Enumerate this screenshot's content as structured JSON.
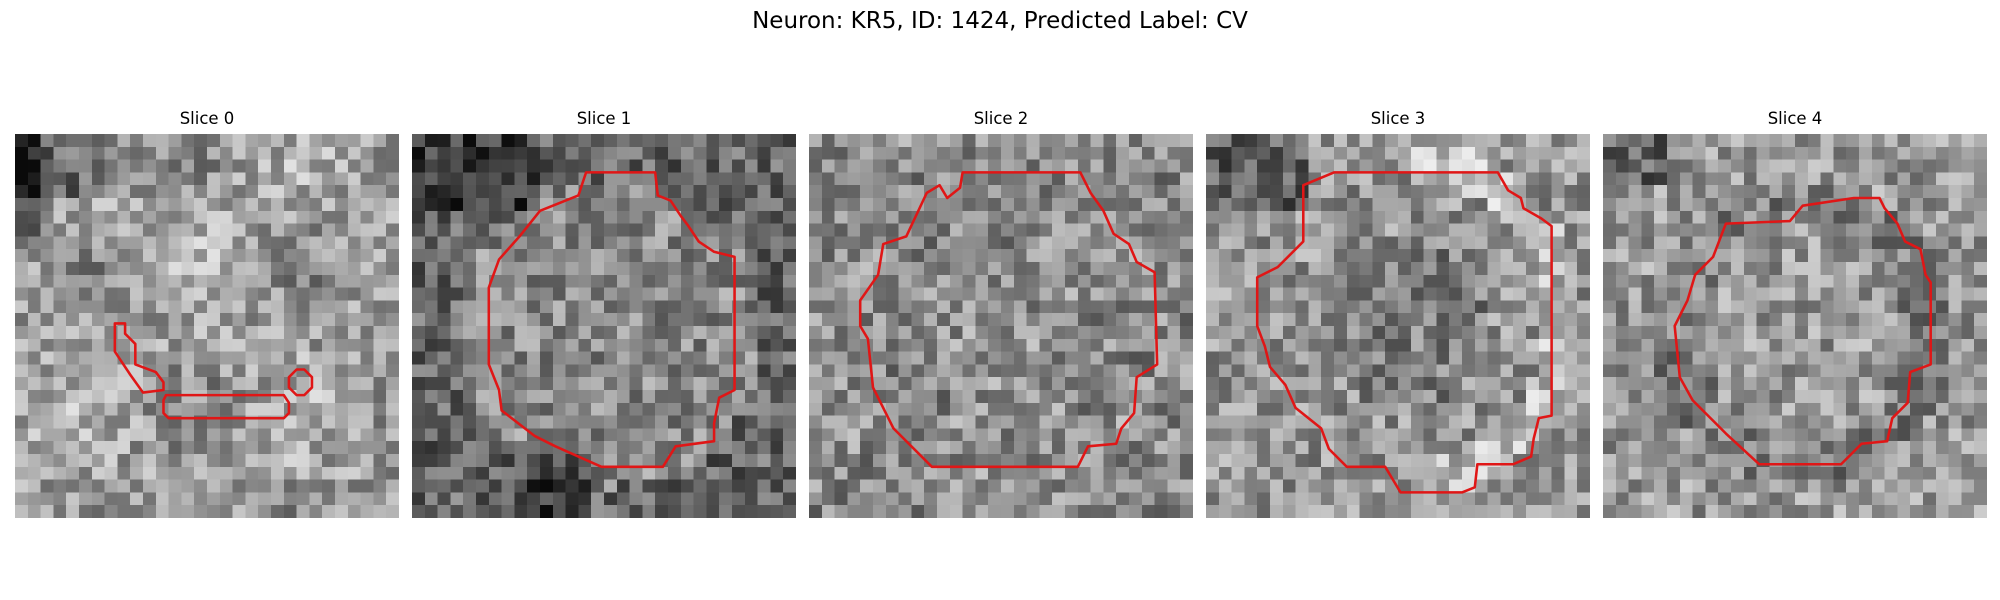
{
  "figure": {
    "title": "Neuron: KR5, ID: 1424, Predicted Label: CV",
    "contour_color": "#e01616"
  },
  "panels": [
    {
      "title": "Slice 0"
    },
    {
      "title": "Slice 1"
    },
    {
      "title": "Slice 2"
    },
    {
      "title": "Slice 3"
    },
    {
      "title": "Slice 4"
    }
  ]
}
